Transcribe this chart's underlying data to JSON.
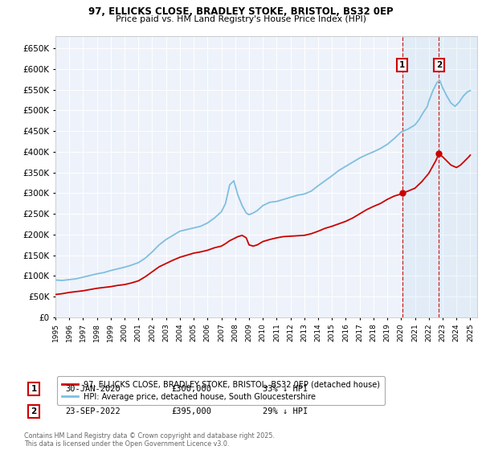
{
  "title1": "97, ELLICKS CLOSE, BRADLEY STOKE, BRISTOL, BS32 0EP",
  "title2": "Price paid vs. HM Land Registry's House Price Index (HPI)",
  "hpi_color": "#7fbfdf",
  "price_color": "#cc0000",
  "bg_color": "#ffffff",
  "plot_bg_color": "#eef2fa",
  "grid_color": "#ffffff",
  "marker1_date": 2020.08,
  "marker2_date": 2022.73,
  "marker1_price": 300000,
  "marker2_price": 395000,
  "legend_line1": "97, ELLICKS CLOSE, BRADLEY STOKE, BRISTOL, BS32 0EP (detached house)",
  "legend_line2": "HPI: Average price, detached house, South Gloucestershire",
  "table_row1_num": "1",
  "table_row1_date": "30-JAN-2020",
  "table_row1_price": "£300,000",
  "table_row1_hpi": "33% ↓ HPI",
  "table_row2_num": "2",
  "table_row2_date": "23-SEP-2022",
  "table_row2_price": "£395,000",
  "table_row2_hpi": "29% ↓ HPI",
  "footer": "Contains HM Land Registry data © Crown copyright and database right 2025.\nThis data is licensed under the Open Government Licence v3.0.",
  "ylim_max": 680000,
  "xlim_min": 1995,
  "xlim_max": 2025.5,
  "hpi_data": [
    [
      1995.0,
      90000
    ],
    [
      1995.5,
      89000
    ],
    [
      1996.0,
      91000
    ],
    [
      1996.5,
      93000
    ],
    [
      1997.0,
      97000
    ],
    [
      1997.5,
      101000
    ],
    [
      1998.0,
      105000
    ],
    [
      1998.5,
      108000
    ],
    [
      1999.0,
      113000
    ],
    [
      1999.5,
      117000
    ],
    [
      2000.0,
      121000
    ],
    [
      2000.5,
      126000
    ],
    [
      2001.0,
      132000
    ],
    [
      2001.5,
      143000
    ],
    [
      2002.0,
      158000
    ],
    [
      2002.5,
      175000
    ],
    [
      2003.0,
      188000
    ],
    [
      2003.5,
      198000
    ],
    [
      2004.0,
      208000
    ],
    [
      2004.5,
      212000
    ],
    [
      2005.0,
      216000
    ],
    [
      2005.5,
      220000
    ],
    [
      2006.0,
      228000
    ],
    [
      2006.5,
      240000
    ],
    [
      2007.0,
      255000
    ],
    [
      2007.3,
      275000
    ],
    [
      2007.6,
      320000
    ],
    [
      2007.9,
      330000
    ],
    [
      2008.2,
      295000
    ],
    [
      2008.5,
      270000
    ],
    [
      2008.8,
      252000
    ],
    [
      2009.0,
      248000
    ],
    [
      2009.3,
      252000
    ],
    [
      2009.6,
      258000
    ],
    [
      2010.0,
      270000
    ],
    [
      2010.5,
      278000
    ],
    [
      2011.0,
      280000
    ],
    [
      2011.5,
      285000
    ],
    [
      2012.0,
      290000
    ],
    [
      2012.5,
      295000
    ],
    [
      2013.0,
      298000
    ],
    [
      2013.5,
      305000
    ],
    [
      2014.0,
      318000
    ],
    [
      2014.5,
      330000
    ],
    [
      2015.0,
      342000
    ],
    [
      2015.5,
      355000
    ],
    [
      2016.0,
      365000
    ],
    [
      2016.5,
      375000
    ],
    [
      2017.0,
      385000
    ],
    [
      2017.5,
      393000
    ],
    [
      2018.0,
      400000
    ],
    [
      2018.5,
      408000
    ],
    [
      2019.0,
      418000
    ],
    [
      2019.5,
      432000
    ],
    [
      2020.0,
      448000
    ],
    [
      2020.5,
      455000
    ],
    [
      2021.0,
      465000
    ],
    [
      2021.3,
      478000
    ],
    [
      2021.6,
      495000
    ],
    [
      2021.9,
      510000
    ],
    [
      2022.0,
      522000
    ],
    [
      2022.3,
      548000
    ],
    [
      2022.6,
      568000
    ],
    [
      2022.8,
      572000
    ],
    [
      2023.0,
      555000
    ],
    [
      2023.3,
      535000
    ],
    [
      2023.6,
      518000
    ],
    [
      2023.9,
      510000
    ],
    [
      2024.2,
      520000
    ],
    [
      2024.5,
      535000
    ],
    [
      2024.8,
      545000
    ],
    [
      2025.0,
      548000
    ]
  ],
  "price_data": [
    [
      1995.0,
      55000
    ],
    [
      1995.5,
      57000
    ],
    [
      1996.0,
      60000
    ],
    [
      1996.5,
      62000
    ],
    [
      1997.0,
      64000
    ],
    [
      1997.5,
      67000
    ],
    [
      1998.0,
      70000
    ],
    [
      1998.5,
      72000
    ],
    [
      1999.0,
      74000
    ],
    [
      1999.5,
      77000
    ],
    [
      2000.0,
      79000
    ],
    [
      2000.5,
      83000
    ],
    [
      2001.0,
      88000
    ],
    [
      2001.5,
      98000
    ],
    [
      2002.0,
      110000
    ],
    [
      2002.5,
      122000
    ],
    [
      2003.0,
      130000
    ],
    [
      2003.5,
      138000
    ],
    [
      2004.0,
      145000
    ],
    [
      2004.5,
      150000
    ],
    [
      2005.0,
      155000
    ],
    [
      2005.5,
      158000
    ],
    [
      2006.0,
      162000
    ],
    [
      2006.5,
      168000
    ],
    [
      2007.0,
      172000
    ],
    [
      2007.3,
      178000
    ],
    [
      2007.6,
      185000
    ],
    [
      2007.9,
      190000
    ],
    [
      2008.2,
      195000
    ],
    [
      2008.5,
      198000
    ],
    [
      2008.8,
      192000
    ],
    [
      2009.0,
      175000
    ],
    [
      2009.3,
      172000
    ],
    [
      2009.6,
      175000
    ],
    [
      2010.0,
      183000
    ],
    [
      2010.5,
      188000
    ],
    [
      2011.0,
      192000
    ],
    [
      2011.5,
      195000
    ],
    [
      2012.0,
      196000
    ],
    [
      2012.5,
      197000
    ],
    [
      2013.0,
      198000
    ],
    [
      2013.5,
      202000
    ],
    [
      2014.0,
      208000
    ],
    [
      2014.5,
      215000
    ],
    [
      2015.0,
      220000
    ],
    [
      2015.5,
      226000
    ],
    [
      2016.0,
      232000
    ],
    [
      2016.5,
      240000
    ],
    [
      2017.0,
      250000
    ],
    [
      2017.5,
      260000
    ],
    [
      2018.0,
      268000
    ],
    [
      2018.5,
      275000
    ],
    [
      2019.0,
      285000
    ],
    [
      2019.5,
      293000
    ],
    [
      2020.0,
      298000
    ],
    [
      2020.08,
      300000
    ],
    [
      2020.5,
      305000
    ],
    [
      2021.0,
      312000
    ],
    [
      2021.5,
      328000
    ],
    [
      2022.0,
      348000
    ],
    [
      2022.5,
      378000
    ],
    [
      2022.73,
      395000
    ],
    [
      2023.0,
      388000
    ],
    [
      2023.3,
      378000
    ],
    [
      2023.6,
      368000
    ],
    [
      2024.0,
      362000
    ],
    [
      2024.3,
      368000
    ],
    [
      2024.6,
      378000
    ],
    [
      2024.9,
      388000
    ],
    [
      2025.0,
      392000
    ]
  ]
}
